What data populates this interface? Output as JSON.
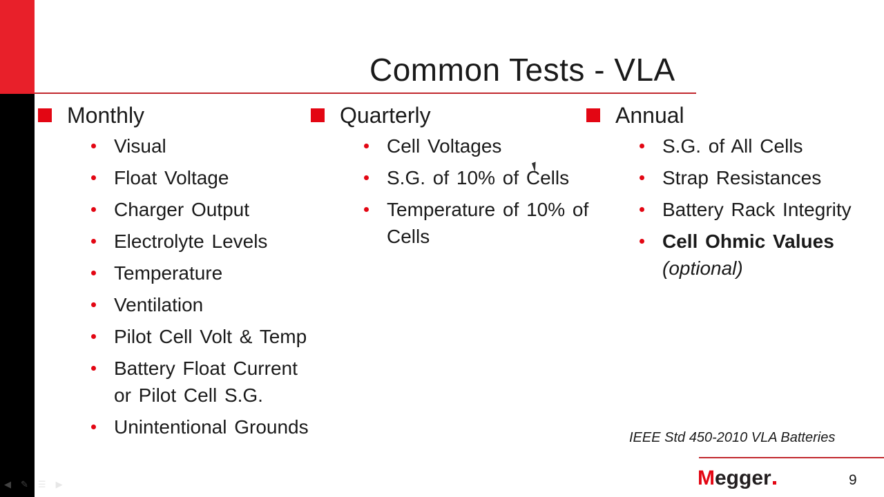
{
  "slide": {
    "title": "Common Tests - VLA",
    "columns": [
      {
        "heading": "Monthly",
        "items": [
          "Visual",
          "Float Voltage",
          "Charger Output",
          "Electrolyte Levels",
          "Temperature",
          "Ventilation",
          "Pilot Cell Volt & Temp",
          "Battery Float Current or Pilot Cell S.G.",
          "Unintentional Grounds"
        ]
      },
      {
        "heading": "Quarterly",
        "items": [
          "Cell Voltages",
          "S.G. of 10% of Cells",
          "Temperature of 10% of Cells"
        ]
      },
      {
        "heading": "Annual",
        "items": [
          "S.G. of All Cells",
          "Strap Resistances",
          "Battery Rack Integrity"
        ],
        "emphasis_item": {
          "bold": "Cell Ohmic Values",
          "italic": "(optional)"
        }
      }
    ],
    "footnote": "IEEE Std 450-2010 VLA Batteries",
    "logo": {
      "first_letter": "M",
      "rest": "egger"
    },
    "page_number": "9"
  },
  "colors": {
    "accent_red": "#e30613",
    "side_bar_black": "#000000"
  }
}
